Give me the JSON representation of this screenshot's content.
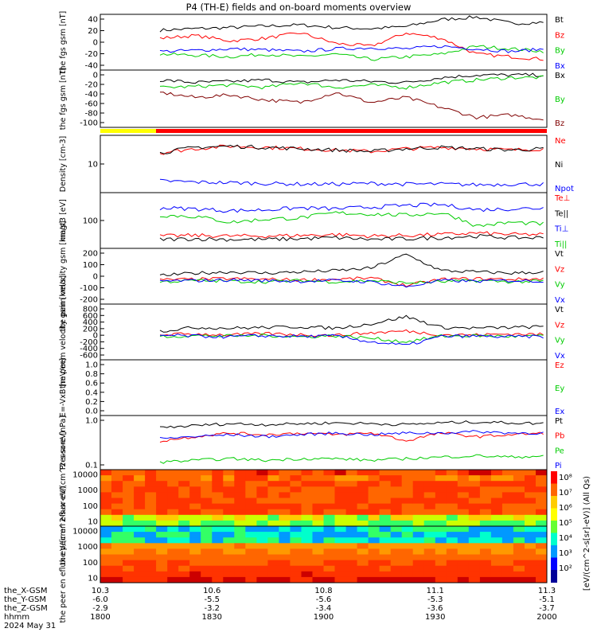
{
  "title": "P4 (TH-E) fields and on-board moments overview",
  "footer": {
    "rows": [
      {
        "label": "the_X-GSM",
        "ticks": [
          "10.3",
          "10.6",
          "10.8",
          "11.1",
          "11.3"
        ]
      },
      {
        "label": "the_Y-GSM",
        "ticks": [
          "-6.0",
          "-5.5",
          "-5.6",
          "-5.3",
          "-5.1"
        ]
      },
      {
        "label": "the_Z-GSM",
        "ticks": [
          "-2.9",
          "-3.2",
          "-3.4",
          "-3.6",
          "-3.7"
        ]
      },
      {
        "label": "hhmm",
        "ticks": [
          "1800",
          "1830",
          "1900",
          "1930",
          "2000"
        ]
      }
    ],
    "date": "2024 May 31"
  },
  "colorbar": {
    "ticks": [
      "10^8",
      "10^7",
      "10^6",
      "10^5",
      "10^4",
      "10^3",
      "10^2"
    ],
    "label": "[eV/(cm^2-s[sr]-eV)] (All Qs)"
  },
  "chart_data": [
    {
      "type": "line",
      "ylabel": "the fgs gsm [nT]",
      "yticks": [
        "40",
        "20",
        "0",
        "-20",
        "-40"
      ],
      "ylim": [
        -50,
        55
      ],
      "series": [
        {
          "name": "Bt",
          "color": "#000000",
          "values": [
            25,
            28,
            30,
            33,
            35,
            30,
            28,
            32,
            45,
            50,
            38,
            40
          ]
        },
        {
          "name": "Bz",
          "color": "#ff0000",
          "values": [
            10,
            15,
            5,
            10,
            20,
            0,
            -5,
            20,
            10,
            -20,
            -25,
            -30
          ]
        },
        {
          "name": "By",
          "color": "#00cc00",
          "values": [
            -20,
            -22,
            -25,
            -20,
            -25,
            -20,
            -30,
            -25,
            -20,
            -5,
            -10,
            -15
          ]
        },
        {
          "name": "Bx",
          "color": "#0000ff",
          "values": [
            -15,
            -13,
            -10,
            -12,
            -15,
            -10,
            -8,
            -10,
            -5,
            -10,
            -15,
            -10
          ]
        }
      ]
    },
    {
      "type": "line",
      "ylabel": "the fgs gsm [nT]",
      "yticks": [
        "0",
        "-20",
        "-40",
        "-60",
        "-80",
        "-100"
      ],
      "ylim": [
        -110,
        5
      ],
      "series": [
        {
          "name": "Bx",
          "color": "#000000",
          "values": [
            -15,
            -20,
            -18,
            -15,
            -20,
            -15,
            -18,
            -20,
            -10,
            -5,
            -5,
            -5
          ]
        },
        {
          "name": "By",
          "color": "#00cc00",
          "values": [
            -30,
            -28,
            -25,
            -30,
            -20,
            -30,
            -25,
            -30,
            -20,
            -15,
            -10,
            -10
          ]
        },
        {
          "name": "Bz",
          "color": "#800000",
          "values": [
            -40,
            -50,
            -45,
            -55,
            -60,
            -40,
            -60,
            -50,
            -70,
            -90,
            -85,
            -95
          ]
        }
      ]
    },
    {
      "type": "line",
      "ylabel": "Density [cm-3]",
      "yticks": [
        "10"
      ],
      "ylim": [
        2,
        30
      ],
      "series": [
        {
          "name": "Ne",
          "color": "#ff0000",
          "values": [
            13,
            16,
            18,
            17,
            16,
            15,
            14,
            16,
            17,
            16,
            15,
            16
          ]
        },
        {
          "name": "Ni",
          "color": "#000000",
          "values": [
            13,
            17,
            18,
            17,
            16,
            15,
            14,
            16,
            17,
            16,
            15,
            16
          ]
        },
        {
          "name": "Npot",
          "color": "#0000ff",
          "values": [
            3.5,
            3.3,
            3.2,
            3.1,
            3.0,
            3.0,
            3.1,
            3.0,
            3.0,
            2.9,
            3.0,
            3.0
          ]
        }
      ]
    },
    {
      "type": "line",
      "ylabel": "magt3 [eV]",
      "yticks": [
        "100"
      ],
      "ylim": [
        40,
        500
      ],
      "series": [
        {
          "name": "Te⊥",
          "color": "#ff0000",
          "values": [
            70,
            72,
            70,
            70,
            72,
            75,
            70,
            72,
            75,
            80,
            75,
            75
          ]
        },
        {
          "name": "Te||",
          "color": "#000000",
          "values": [
            60,
            62,
            60,
            60,
            62,
            65,
            60,
            62,
            65,
            70,
            65,
            65
          ]
        },
        {
          "name": "Ti⊥",
          "color": "#0000ff",
          "values": [
            250,
            240,
            220,
            230,
            250,
            240,
            260,
            280,
            290,
            230,
            240,
            250
          ]
        },
        {
          "name": "Ti||",
          "color": "#00cc00",
          "values": [
            180,
            170,
            130,
            150,
            160,
            200,
            190,
            180,
            200,
            110,
            130,
            120
          ]
        }
      ]
    },
    {
      "type": "line",
      "ylabel": "the peim velocity gsm [km/s]",
      "yticks": [
        "200",
        "100",
        "0",
        "-100",
        "-200"
      ],
      "ylim": [
        -200,
        250
      ],
      "series": [
        {
          "name": "Vt",
          "color": "#000000",
          "values": [
            30,
            50,
            60,
            50,
            60,
            70,
            90,
            200,
            70,
            60,
            50,
            60
          ]
        },
        {
          "name": "Vz",
          "color": "#ff0000",
          "values": [
            -5,
            0,
            5,
            0,
            -5,
            0,
            10,
            -50,
            0,
            5,
            0,
            5
          ]
        },
        {
          "name": "Vy",
          "color": "#00cc00",
          "values": [
            -20,
            -10,
            -15,
            -20,
            -10,
            -20,
            -10,
            -30,
            -20,
            -10,
            -20,
            -15
          ]
        },
        {
          "name": "Vx",
          "color": "#0000ff",
          "values": [
            -15,
            -10,
            -5,
            -10,
            -15,
            -10,
            -20,
            -60,
            -10,
            -15,
            -10,
            -15
          ]
        }
      ]
    },
    {
      "type": "line",
      "ylabel": "the peem velocity gsm [km/s]",
      "yticks": [
        "800",
        "600",
        "400",
        "200",
        "0",
        "-200",
        "-400",
        "-600"
      ],
      "ylim": [
        -700,
        850
      ],
      "series": [
        {
          "name": "Vt",
          "color": "#000000",
          "values": [
            100,
            200,
            180,
            200,
            220,
            180,
            300,
            500,
            200,
            180,
            200,
            220
          ]
        },
        {
          "name": "Vz",
          "color": "#ff0000",
          "values": [
            0,
            20,
            -10,
            30,
            0,
            -20,
            50,
            100,
            0,
            -10,
            20,
            0
          ]
        },
        {
          "name": "Vy",
          "color": "#00cc00",
          "values": [
            -50,
            -30,
            -40,
            -20,
            -60,
            -30,
            -100,
            -200,
            -40,
            -30,
            -50,
            -40
          ]
        },
        {
          "name": "Vx",
          "color": "#0000ff",
          "values": [
            -20,
            -40,
            -60,
            -30,
            -50,
            -40,
            -200,
            -300,
            -50,
            -40,
            -60,
            -50
          ]
        }
      ]
    },
    {
      "type": "line",
      "ylabel": "E=-VxB [mV/m]",
      "yticks": [
        "1.0",
        "0.8",
        "0.6",
        "0.4",
        "0.2",
        "0.0"
      ],
      "ylim": [
        0,
        1
      ],
      "series": [
        {
          "name": "Ez",
          "color": "#ff0000",
          "values": []
        },
        {
          "name": "Ey",
          "color": "#00cc00",
          "values": []
        },
        {
          "name": "Ex",
          "color": "#0000ff",
          "values": []
        }
      ]
    },
    {
      "type": "line",
      "ylabel": "Pressure [nPa]",
      "yticks": [
        "1.0",
        "0.1"
      ],
      "ylim": [
        0.05,
        1.5
      ],
      "series": [
        {
          "name": "Pt",
          "color": "#000000",
          "values": [
            0.7,
            0.8,
            0.9,
            0.85,
            0.9,
            0.95,
            0.9,
            0.85,
            0.95,
            1.0,
            0.95,
            0.9
          ]
        },
        {
          "name": "Pb",
          "color": "#ff0000",
          "values": [
            0.3,
            0.4,
            0.5,
            0.45,
            0.5,
            0.45,
            0.5,
            0.3,
            0.5,
            0.4,
            0.45,
            0.5
          ]
        },
        {
          "name": "Pe",
          "color": "#00cc00",
          "values": [
            0.08,
            0.09,
            0.1,
            0.09,
            0.1,
            0.1,
            0.09,
            0.1,
            0.11,
            0.12,
            0.11,
            0.12
          ]
        },
        {
          "name": "Pi",
          "color": "#0000ff",
          "values": [
            0.35,
            0.4,
            0.45,
            0.4,
            0.45,
            0.5,
            0.45,
            0.5,
            0.5,
            0.55,
            0.5,
            0.5
          ]
        }
      ]
    },
    {
      "type": "heatmap",
      "ylabel": "the peir en eflux eV/(cm^2-s-sr-eV)",
      "yticks": [
        "10000",
        "1000",
        "100",
        "10"
      ]
    },
    {
      "type": "heatmap",
      "ylabel": "the peer en eflux eV/(cm^2-s-sr-eV)",
      "yticks": [
        "10000",
        "1000",
        "100",
        "10"
      ]
    }
  ]
}
